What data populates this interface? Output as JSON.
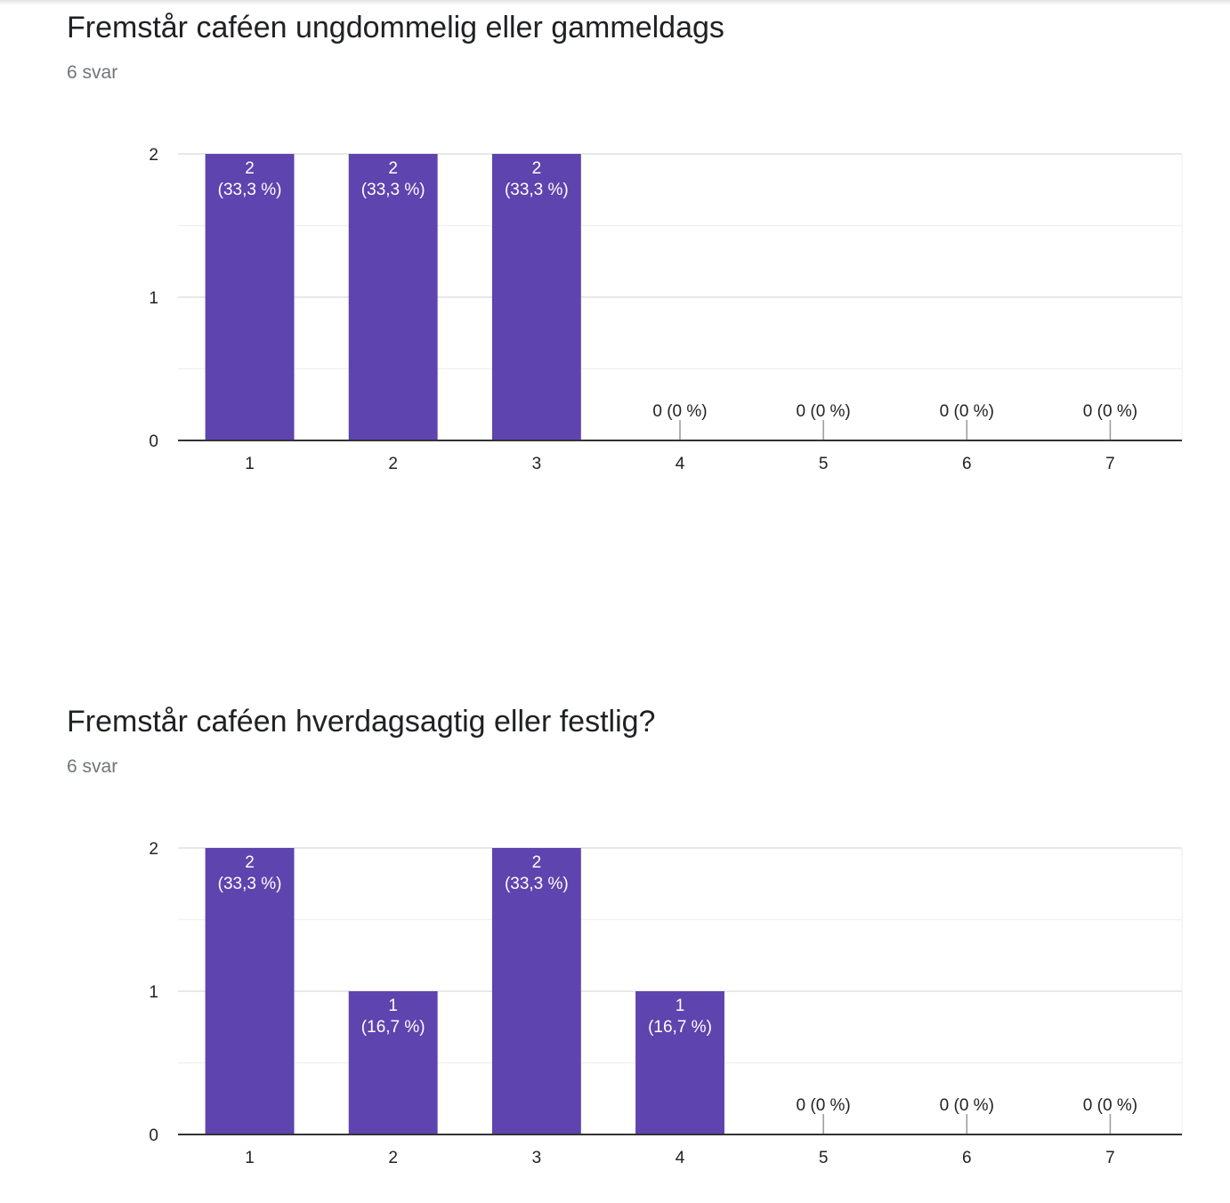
{
  "accent_color": "#5e44ae",
  "questions": [
    {
      "title": "Fremstår caféen ungdommelig eller gammeldags",
      "response_count": "6 svar"
    },
    {
      "title": "Fremstår caféen hverdagsagtig eller festlig?",
      "response_count": "6 svar"
    }
  ],
  "chart_data": [
    {
      "type": "bar",
      "categories": [
        "1",
        "2",
        "3",
        "4",
        "5",
        "6",
        "7"
      ],
      "values": [
        2,
        2,
        2,
        0,
        0,
        0,
        0
      ],
      "data_labels": [
        [
          "2",
          "(33,3 %)"
        ],
        [
          "2",
          "(33,3 %)"
        ],
        [
          "2",
          "(33,3 %)"
        ],
        [
          "0 (0 %)"
        ],
        [
          "0 (0 %)"
        ],
        [
          "0 (0 %)"
        ],
        [
          "0 (0 %)"
        ]
      ],
      "yticks": [
        "0",
        "1",
        "2"
      ],
      "ylim": [
        0,
        2
      ],
      "grid": true,
      "color": "#5e44ae"
    },
    {
      "type": "bar",
      "categories": [
        "1",
        "2",
        "3",
        "4",
        "5",
        "6",
        "7"
      ],
      "values": [
        2,
        1,
        2,
        1,
        0,
        0,
        0
      ],
      "data_labels": [
        [
          "2",
          "(33,3 %)"
        ],
        [
          "1",
          "(16,7 %)"
        ],
        [
          "2",
          "(33,3 %)"
        ],
        [
          "1",
          "(16,7 %)"
        ],
        [
          "0 (0 %)"
        ],
        [
          "0 (0 %)"
        ],
        [
          "0 (0 %)"
        ]
      ],
      "yticks": [
        "0",
        "1",
        "2"
      ],
      "ylim": [
        0,
        2
      ],
      "grid": true,
      "color": "#5e44ae"
    }
  ]
}
